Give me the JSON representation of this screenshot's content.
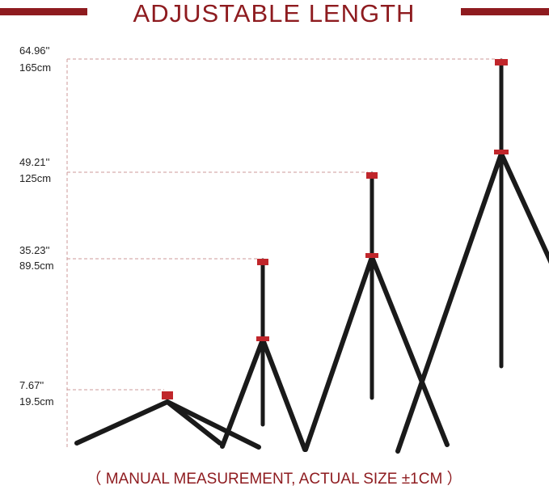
{
  "title": "ADJUSTABLE LENGTH",
  "heights": [
    {
      "inch": "64.96''",
      "cm": "165cm"
    },
    {
      "inch": "49.21''",
      "cm": "125cm"
    },
    {
      "inch": "35.23''",
      "cm": "89.5cm"
    },
    {
      "inch": "7.67''",
      "cm": "19.5cm"
    }
  ],
  "note": "（ MANUAL MEASUREMENT, ACTUAL SIZE ±1CM ）"
}
